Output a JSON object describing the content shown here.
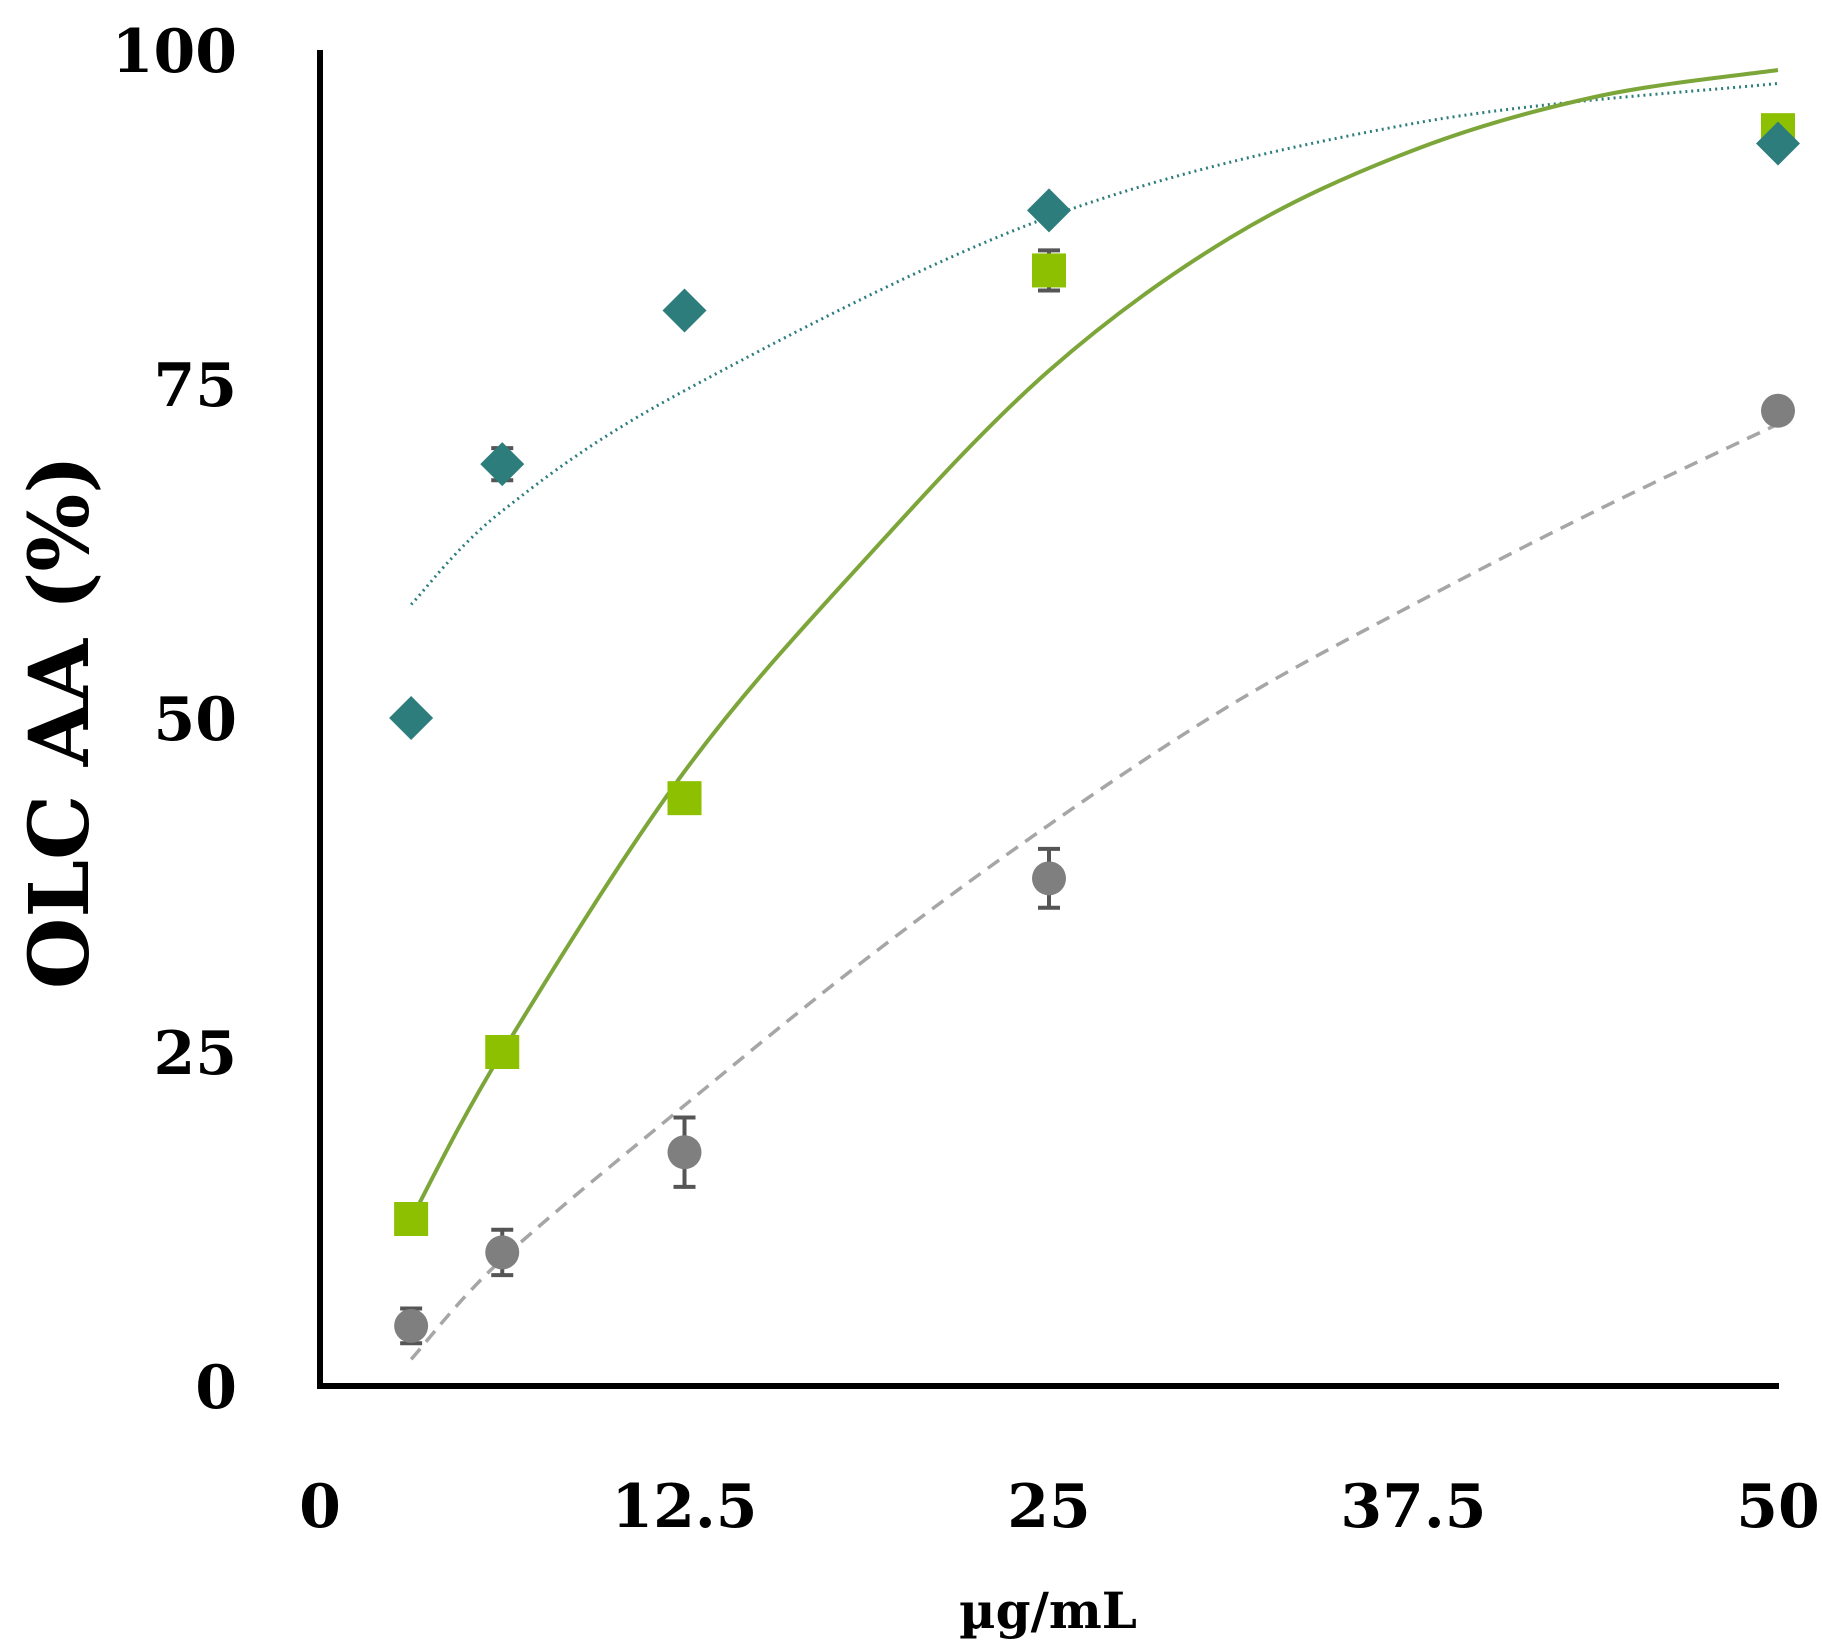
{
  "chart_data": {
    "type": "scatter",
    "title": "",
    "xlabel": "µg/mL",
    "ylabel": "OLC AA (%)",
    "xlim": [
      0,
      50
    ],
    "ylim": [
      0,
      100
    ],
    "xticks": [
      "0",
      "12.5",
      "25",
      "37.5",
      "50"
    ],
    "yticks": [
      "0",
      "25",
      "50",
      "75",
      "100"
    ],
    "grid": false,
    "legend": "none",
    "series": [
      {
        "name": "diamond-series",
        "marker": "diamond",
        "color": "#2E7D7D",
        "x": [
          3.125,
          6.25,
          12.5,
          25,
          50
        ],
        "y": [
          50,
          69,
          80.5,
          88,
          93
        ],
        "err": [
          0,
          1.2,
          0,
          0,
          0
        ],
        "trendline": {
          "style": "dotted",
          "color": "#2E7D7D",
          "points": [
            [
              3.125,
              58.5
            ],
            [
              6.25,
              65.5
            ],
            [
              12.5,
              74.5
            ],
            [
              25,
              87.5
            ],
            [
              37.5,
              94.5
            ],
            [
              50,
              97.5
            ]
          ]
        }
      },
      {
        "name": "square-series",
        "marker": "square",
        "color": "#8DC000",
        "x": [
          3.125,
          6.25,
          12.5,
          25,
          50
        ],
        "y": [
          12.5,
          25,
          44,
          83.5,
          94
        ],
        "err": [
          0,
          1,
          0,
          1.5,
          0
        ],
        "trendline": {
          "style": "solid",
          "color": "#7DA63A",
          "points": [
            [
              3.125,
              12.5
            ],
            [
              6.25,
              25
            ],
            [
              12.5,
              46
            ],
            [
              18.75,
              62
            ],
            [
              25,
              76
            ],
            [
              31.25,
              86
            ],
            [
              37.5,
              92.5
            ],
            [
              43.75,
              96.5
            ],
            [
              50,
              98.5
            ]
          ]
        }
      },
      {
        "name": "circle-series",
        "marker": "circle",
        "color": "#7F7F7F",
        "x": [
          3.125,
          6.25,
          12.5,
          25,
          50
        ],
        "y": [
          4.5,
          10,
          17.5,
          38,
          73
        ],
        "err": [
          1.3,
          1.7,
          2.6,
          2.2,
          0
        ],
        "trendline": {
          "style": "dashed",
          "color": "#A6A6A6",
          "points": [
            [
              3.125,
              2
            ],
            [
              6.25,
              9.5
            ],
            [
              12.5,
              21
            ],
            [
              18.75,
              32
            ],
            [
              25,
              42
            ],
            [
              31.25,
              51
            ],
            [
              37.5,
              58.5
            ],
            [
              43.75,
              65.5
            ],
            [
              50,
              72
            ]
          ]
        }
      }
    ]
  }
}
